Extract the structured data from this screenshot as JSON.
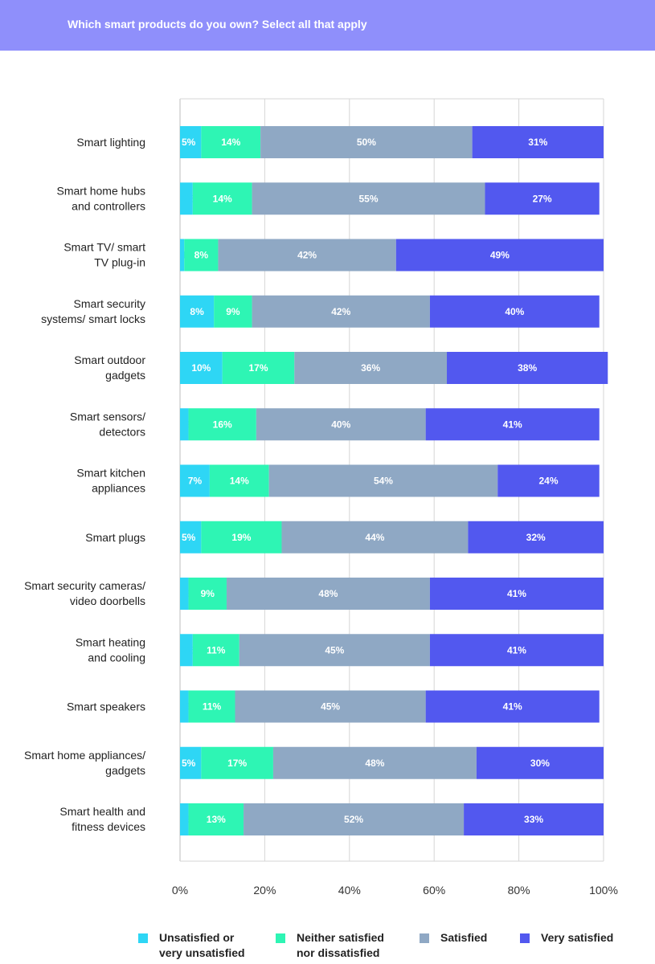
{
  "header": {
    "title": "Which smart products do you own? Select all that apply",
    "background": "#8f8ffb"
  },
  "chart_data": {
    "type": "bar",
    "orientation": "horizontal",
    "stacked": true,
    "categories": [
      [
        "Smart lighting"
      ],
      [
        "Smart home hubs",
        "and controllers"
      ],
      [
        "Smart TV/ smart",
        "TV plug-in"
      ],
      [
        "Smart security",
        "systems/ smart locks"
      ],
      [
        "Smart outdoor",
        "gadgets"
      ],
      [
        "Smart sensors/",
        "detectors"
      ],
      [
        "Smart kitchen",
        "appliances"
      ],
      [
        "Smart plugs"
      ],
      [
        "Smart security cameras/",
        "video doorbells"
      ],
      [
        "Smart heating",
        "and cooling"
      ],
      [
        "Smart speakers"
      ],
      [
        "Smart home appliances/",
        "gadgets"
      ],
      [
        "Smart health and",
        "fitness devices"
      ]
    ],
    "series": [
      {
        "name": "Unsatisfied or very unsatisfied",
        "legend_lines": [
          "Unsatisfied or",
          "very unsatisfied"
        ],
        "color": "#2ed6f5",
        "label_color_on_small": "#2ed6f5",
        "values": [
          5,
          3,
          1,
          8,
          10,
          2,
          7,
          5,
          2,
          3,
          2,
          5,
          2
        ]
      },
      {
        "name": "Neither satisfied nor dissatisfied",
        "legend_lines": [
          "Neither satisfied",
          "nor dissatisfied"
        ],
        "color": "#2ef5b4",
        "values": [
          14,
          14,
          8,
          9,
          17,
          16,
          14,
          19,
          9,
          11,
          11,
          17,
          13
        ]
      },
      {
        "name": "Satisfied",
        "legend_lines": [
          "Satisfied"
        ],
        "color": "#8fa8c4",
        "values": [
          50,
          55,
          42,
          42,
          36,
          40,
          54,
          44,
          48,
          45,
          45,
          48,
          52
        ]
      },
      {
        "name": "Very satisfied",
        "legend_lines": [
          "Very satisfied"
        ],
        "color": "#5258ef",
        "values": [
          31,
          27,
          49,
          40,
          38,
          41,
          24,
          32,
          41,
          41,
          41,
          30,
          33
        ]
      }
    ],
    "xlim": [
      0,
      100
    ],
    "xticks": [
      "0%",
      "20%",
      "40%",
      "60%",
      "80%",
      "100%"
    ],
    "grid": true,
    "legend_position": "bottom",
    "value_suffix": "%"
  }
}
